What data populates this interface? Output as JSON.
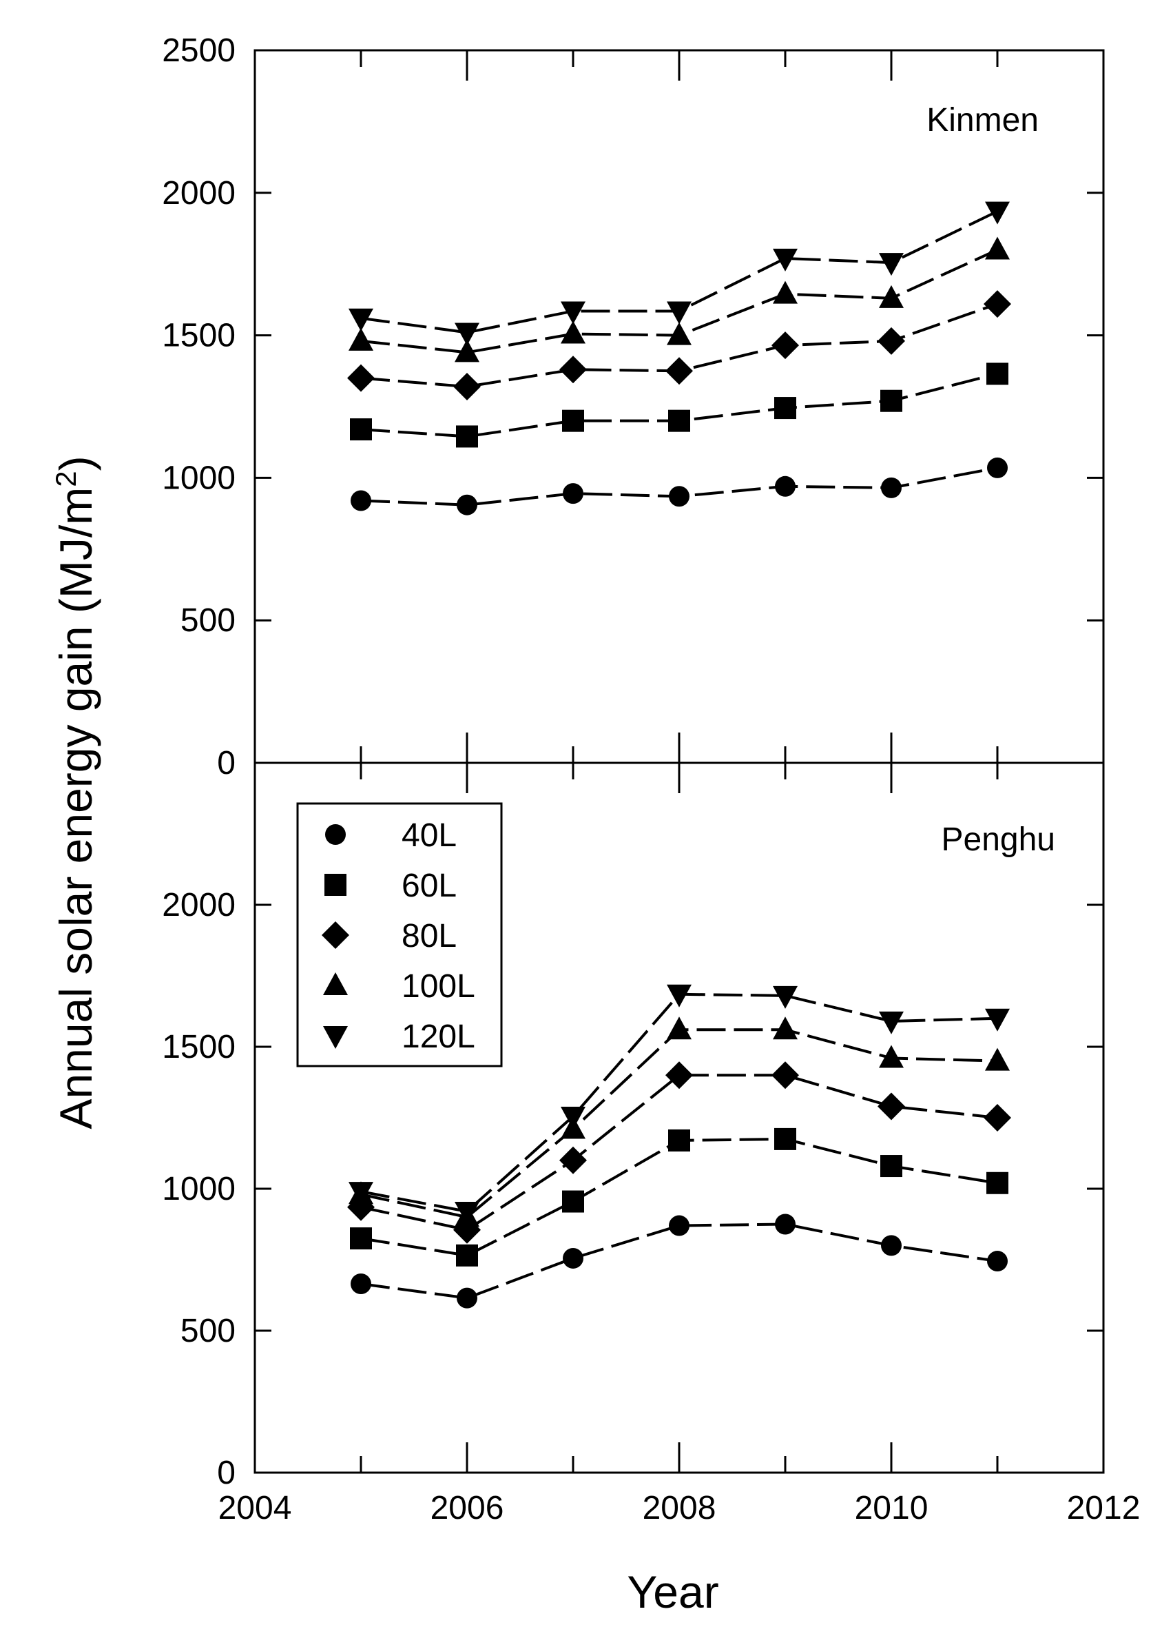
{
  "chart_data": {
    "type": "line",
    "ylabel": "Annual solar energy gain (MJ/m",
    "ylabel_superscript": "2",
    "ylabel_close": ")",
    "xlabel": "Year",
    "xlim": [
      2004,
      2012
    ],
    "xticks": [
      "2004",
      "2006",
      "2008",
      "2010",
      "2012"
    ],
    "x": [
      2005,
      2006,
      2007,
      2008,
      2009,
      2010,
      2011
    ],
    "legend": {
      "placement": "lower panel, top-left",
      "entries": [
        {
          "label": "40L",
          "marker": "circle"
        },
        {
          "label": "60L",
          "marker": "square"
        },
        {
          "label": "80L",
          "marker": "diamond"
        },
        {
          "label": "100L",
          "marker": "triangle-up"
        },
        {
          "label": "120L",
          "marker": "triangle-down"
        }
      ]
    },
    "panels": [
      {
        "title": "Kinmen",
        "ylim": [
          0,
          2500
        ],
        "yticks": [
          "0",
          "500",
          "1000",
          "1500",
          "2000",
          "2500"
        ],
        "series": [
          {
            "name": "40L",
            "marker": "circle",
            "values": [
              920,
              905,
              945,
              935,
              970,
              965,
              1035
            ]
          },
          {
            "name": "60L",
            "marker": "square",
            "values": [
              1170,
              1145,
              1200,
              1200,
              1245,
              1270,
              1365
            ]
          },
          {
            "name": "80L",
            "marker": "diamond",
            "values": [
              1350,
              1320,
              1380,
              1375,
              1465,
              1480,
              1610
            ]
          },
          {
            "name": "100L",
            "marker": "triangle-up",
            "values": [
              1480,
              1440,
              1505,
              1500,
              1645,
              1630,
              1800
            ]
          },
          {
            "name": "120L",
            "marker": "triangle-down",
            "values": [
              1560,
              1510,
              1585,
              1585,
              1770,
              1755,
              1935
            ]
          }
        ]
      },
      {
        "title": "Penghu",
        "ylim": [
          0,
          2500
        ],
        "yticks": [
          "0",
          "500",
          "1000",
          "1500",
          "2000"
        ],
        "series": [
          {
            "name": "40L",
            "marker": "circle",
            "values": [
              665,
              615,
              755,
              870,
              875,
              800,
              745
            ]
          },
          {
            "name": "60L",
            "marker": "square",
            "values": [
              825,
              765,
              955,
              1170,
              1175,
              1080,
              1020
            ]
          },
          {
            "name": "80L",
            "marker": "diamond",
            "values": [
              935,
              855,
              1100,
              1400,
              1400,
              1290,
              1250
            ]
          },
          {
            "name": "100L",
            "marker": "triangle-up",
            "values": [
              980,
              900,
              1210,
              1560,
              1560,
              1460,
              1450
            ]
          },
          {
            "name": "120L",
            "marker": "triangle-down",
            "values": [
              990,
              920,
              1255,
              1685,
              1680,
              1590,
              1600
            ]
          }
        ]
      }
    ]
  }
}
